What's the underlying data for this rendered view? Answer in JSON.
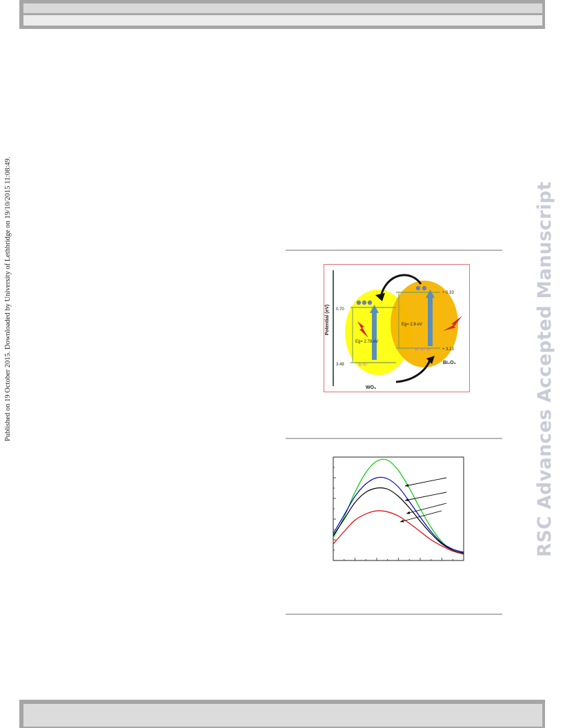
{
  "sidebar_note": "Published on 19 October 2015. Downloaded by University of Lethbridge on 19/10/2015 11:08:49.",
  "watermark": "RSC Advances Accepted Manuscript",
  "scheme": {
    "y_axis_label": "Potential (eV)",
    "left_label": "WO₃",
    "right_label": "Bi₂O₃",
    "wo3_cb": "0.70",
    "wo3_vb": "3.48",
    "wo3_gap": "Eg= 2.78 eV",
    "bi_cb": "+ 0.33",
    "bi_vb": "+ 3.13",
    "bi_gap": "Eg= 2.8 eV",
    "colors": {
      "wo3": "#ffff1a",
      "bi2o3": "#f5b400",
      "arrow": "#5b8fb8",
      "lightning": "#d42a1e"
    }
  },
  "chart_data": {
    "type": "line",
    "x": [
      0,
      1,
      2,
      3,
      4,
      5,
      6,
      7,
      8,
      9,
      10,
      11,
      12
    ],
    "series": [
      {
        "color": "#00cc00",
        "values": [
          0.22,
          0.42,
          0.66,
          0.85,
          0.96,
          0.97,
          0.87,
          0.7,
          0.5,
          0.32,
          0.18,
          0.1,
          0.07
        ]
      },
      {
        "color": "#0000cc",
        "values": [
          0.26,
          0.44,
          0.62,
          0.74,
          0.8,
          0.79,
          0.71,
          0.57,
          0.42,
          0.28,
          0.17,
          0.11,
          0.08
        ]
      },
      {
        "color": "#000000",
        "values": [
          0.24,
          0.4,
          0.56,
          0.66,
          0.7,
          0.69,
          0.62,
          0.51,
          0.38,
          0.26,
          0.16,
          0.1,
          0.07
        ]
      },
      {
        "color": "#dd0000",
        "values": [
          0.16,
          0.28,
          0.39,
          0.45,
          0.48,
          0.47,
          0.43,
          0.36,
          0.28,
          0.2,
          0.14,
          0.09,
          0.06
        ]
      }
    ],
    "xlim": [
      0,
      12
    ],
    "ylim": [
      0,
      1
    ]
  }
}
